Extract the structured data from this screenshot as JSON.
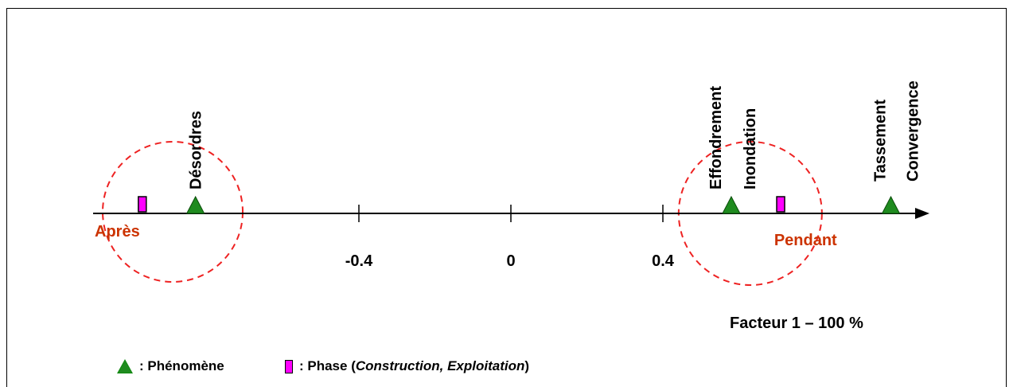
{
  "chart_data": {
    "type": "scatter",
    "xlabel": "Facteur 1 – 100 %",
    "xlim": [
      -1.1,
      1.25
    ],
    "ticks": [
      {
        "value": -0.4,
        "label": "-0.4"
      },
      {
        "value": 0,
        "label": "0"
      },
      {
        "value": 0.4,
        "label": "0.4"
      }
    ],
    "phenomenes": [
      {
        "label": "Désordres",
        "x": -0.83
      },
      {
        "label": "Effondrement",
        "x": 0.58
      },
      {
        "label": "Inondation",
        "x": 0.58
      },
      {
        "label": "Tassement",
        "x": 1.0
      },
      {
        "label": "Convergence",
        "x": 1.0
      }
    ],
    "phases": [
      {
        "x": -0.97
      },
      {
        "x": 0.71
      }
    ],
    "groups": [
      {
        "label": "Après",
        "center_x": -0.89
      },
      {
        "label": "Pendant",
        "center_x": 0.63
      }
    ],
    "colors": {
      "phenomene": "#1f8b1f",
      "phase": "#ff00ff",
      "group": "#cc3300",
      "circle": "#ee2222"
    }
  },
  "legend": {
    "phenomene_icon": "green-triangle",
    "phenomene_label": ": Phénomène",
    "phase_icon": "magenta-rectangle",
    "phase_label_prefix": ": Phase (",
    "phase_label_italic": "Construction, Exploitation",
    "phase_label_suffix": ")"
  }
}
